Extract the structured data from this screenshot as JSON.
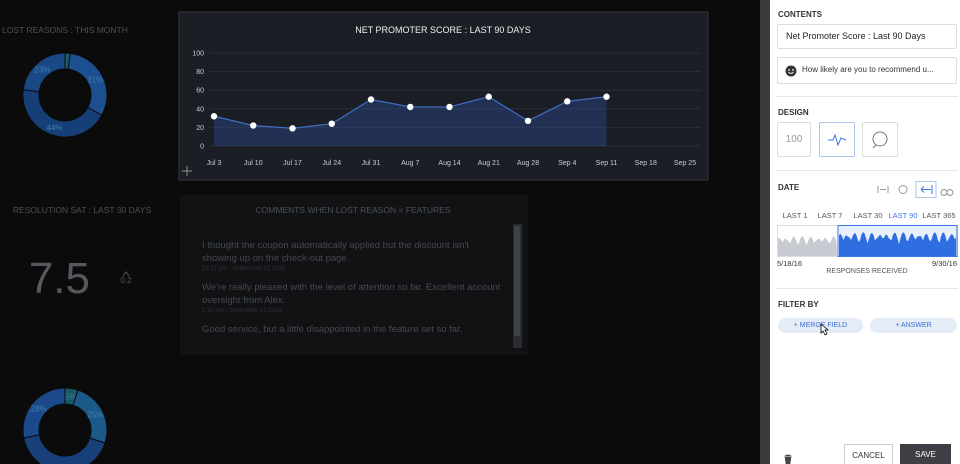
{
  "chart_data": [
    {
      "type": "line",
      "title": "NET PROMOTER SCORE : LAST 90 DAYS",
      "categories": [
        "Jul 3",
        "Jul 10",
        "Jul 17",
        "Jul 24",
        "Jul 31",
        "Aug 7",
        "Aug 14",
        "Aug 21",
        "Aug 28",
        "Sep 4",
        "Sep 11",
        "Sep 18",
        "Sep 25"
      ],
      "values": [
        32,
        22,
        19,
        24,
        50,
        42,
        42,
        53,
        27,
        48,
        53,
        null,
        null
      ],
      "color": "#2c4a8c",
      "ylim": [
        0,
        100
      ],
      "yticks": [
        0,
        20,
        40,
        60,
        80,
        100
      ],
      "grid": true
    },
    {
      "type": "pie",
      "title": "LOST REASONS : THIS MONTH",
      "values": [
        2,
        31,
        44,
        23
      ],
      "value_labels": [
        null,
        "31%",
        "44%",
        "23%"
      ],
      "colors": [
        "#1a5a63",
        "#1b4f8f",
        "#163f78",
        "#1a4884"
      ]
    },
    {
      "type": "pie",
      "values": [
        5,
        25,
        42,
        28
      ],
      "value_labels": [
        "5%",
        "25%",
        null,
        "28%"
      ],
      "colors": [
        "#1a5a63",
        "#1b5a88",
        "#173f78",
        "#1a4a8c"
      ]
    }
  ],
  "resolution": {
    "title": "RESOLUTION SAT : LAST 30 DAYS",
    "score": 7.5,
    "change": 0.2
  },
  "comments": {
    "title": "COMMENTS WHEN LOST REASON = FEATURES",
    "items": [
      {
        "text": "I thought the coupon automatically applied but the discount isn't showing up on the check-out page.",
        "time": "12:17 pm - September 15 2016"
      },
      {
        "text": "We're really pleased with the level of attention so far. Excellent account oversight from Alex.",
        "time": "1:31 pm - September 15 2016"
      },
      {
        "text": "Good service, but a little disappointed in the feature set so far."
      }
    ]
  },
  "panel": {
    "contents_label": "CONTENTS",
    "name_field": "Net Promoter Score : Last 90 Days",
    "question_field": "How likely are you to recommend u...",
    "design_label": "DESIGN",
    "design_number": "100",
    "date_label": "DATE",
    "ranges": [
      "LAST 1",
      "LAST 7",
      "LAST 30",
      "LAST 90",
      "LAST 365"
    ],
    "active_range": 3,
    "date_start": "5/18/16",
    "date_end": "9/30/16",
    "histogram_label": "RESPONSES RECEIVED",
    "filter_label": "FILTER BY",
    "filter_buttons": [
      "+ MERGE FIELD",
      "+ ANSWER"
    ],
    "cancel": "CANCEL",
    "save": "SAVE"
  }
}
